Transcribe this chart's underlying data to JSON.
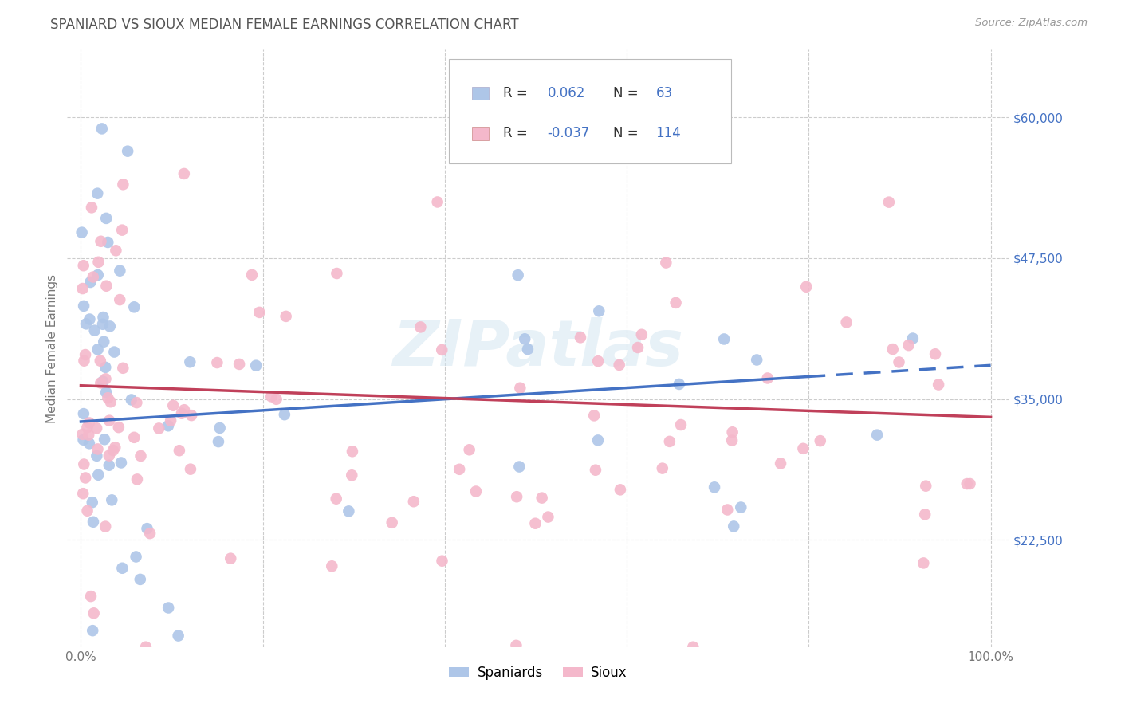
{
  "title": "SPANIARD VS SIOUX MEDIAN FEMALE EARNINGS CORRELATION CHART",
  "source_text": "Source: ZipAtlas.com",
  "ylabel": "Median Female Earnings",
  "watermark": "ZIPatlas",
  "xlim": [
    -1.5,
    102.0
  ],
  "ylim": [
    13000,
    66000
  ],
  "yticks": [
    22500,
    35000,
    47500,
    60000
  ],
  "ytick_labels": [
    "$22,500",
    "$35,000",
    "$47,500",
    "$60,000"
  ],
  "xticks": [
    0.0,
    20.0,
    40.0,
    60.0,
    80.0,
    100.0
  ],
  "xtick_labels": [
    "0.0%",
    "",
    "",
    "",
    "",
    "100.0%"
  ],
  "spaniards_R": 0.062,
  "spaniards_N": 63,
  "sioux_R": -0.037,
  "sioux_N": 114,
  "blue_color": "#aec6e8",
  "blue_dark": "#4472c4",
  "pink_color": "#f4b8cb",
  "pink_dark": "#c0405a",
  "blue_line_color": "#4472c4",
  "pink_line_color": "#c0405a",
  "grid_color": "#cccccc",
  "background_color": "#ffffff",
  "title_color": "#555555",
  "legend_R_color": "#4472c4",
  "tick_color": "#777777",
  "ytick_color": "#4472c4"
}
